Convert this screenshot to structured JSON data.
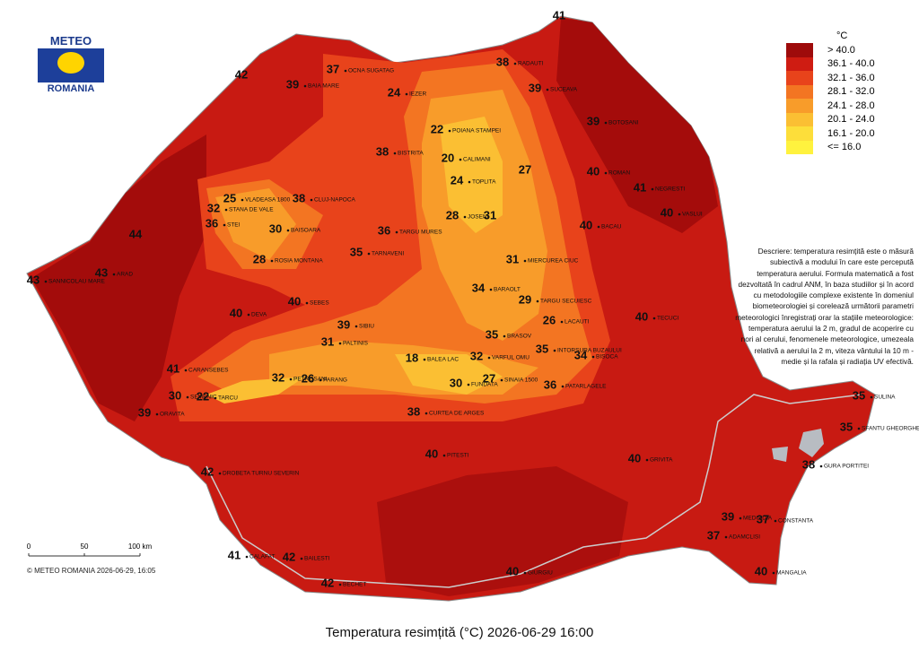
{
  "logo": {
    "line1": "METEO",
    "line2": "ROMANIA"
  },
  "legend": {
    "unit": "°C",
    "items": [
      {
        "label": "> 40.0",
        "color": "#9e0b0b"
      },
      {
        "label": "36.1 - 40.0",
        "color": "#cf1c12"
      },
      {
        "label": "32.1 - 36.0",
        "color": "#e8431b"
      },
      {
        "label": "28.1 - 32.0",
        "color": "#f37522"
      },
      {
        "label": "24.1 - 28.0",
        "color": "#f89c2a"
      },
      {
        "label": "20.1 - 24.0",
        "color": "#fbbf33"
      },
      {
        "label": "16.1 - 20.0",
        "color": "#fdde3a"
      },
      {
        "label": "<= 16.0",
        "color": "#fff23e"
      }
    ]
  },
  "description": "Descriere: temperatura resimțită este o măsură subiectivă a modului în care este percepută temperatura aerului. Formula matematică a fost dezvoltată în cadrul ANM, în baza studiilor și în acord cu metodologiile complexe existente în domeniul biometeorologiei și corelează următorii parametri meteorologici înregistrați orar la stațiile meteorologice: temperatura aerului la 2 m, gradul de acoperire cu nori al cerului, fenomenele meteorologice, umezeala relativă a aerului la 2 m, viteza vântului la 10 m - medie și la rafala și radiația UV efectivă.",
  "scale": {
    "ticks": [
      0,
      50,
      {
        "value": 100,
        "label": "100 km"
      }
    ]
  },
  "copyright": "© METEO ROMANIA 2026-06-29, 16:05",
  "title": "Temperatura resimțită (°C) 2026-06-29 16:00",
  "stations": [
    {
      "value": 41
    },
    {
      "value": 37,
      "name": "OCNA SUGATAG"
    },
    {
      "value": 39,
      "name": "BAIA MARE"
    },
    {
      "value": 42
    },
    {
      "value": 24,
      "name": "IEZER"
    },
    {
      "value": 38,
      "name": "RADAUTI"
    },
    {
      "value": 39,
      "name": "SUCEAVA"
    },
    {
      "value": 39,
      "name": "BOTOSANI"
    },
    {
      "value": 22,
      "name": "POIANA STAMPEI"
    },
    {
      "value": 38,
      "name": "BISTRITA"
    },
    {
      "value": 20,
      "name": "CALIMANI"
    },
    {
      "value": 27
    },
    {
      "value": 24,
      "name": "TOPLITA"
    },
    {
      "value": 40,
      "name": "ROMAN"
    },
    {
      "value": 41,
      "name": "NEGRESTI"
    },
    {
      "value": 40,
      "name": "VASLUI"
    },
    {
      "value": 25,
      "name": "VLADEASA 1800"
    },
    {
      "value": 38,
      "name": "CLUJ-NAPOCA"
    },
    {
      "value": 28,
      "name": "JOSENI"
    },
    {
      "value": 31
    },
    {
      "value": 32,
      "name": "STANA DE VALE"
    },
    {
      "value": 36,
      "name": "STEI"
    },
    {
      "value": 44
    },
    {
      "value": 30,
      "name": "BAISOARA"
    },
    {
      "value": 36,
      "name": "TARGU MURES"
    },
    {
      "value": 40,
      "name": "BACAU"
    },
    {
      "value": 28,
      "name": "ROSIA MONTANA"
    },
    {
      "value": 35,
      "name": "TARNAVENI"
    },
    {
      "value": 31,
      "name": "MIERCUREA CIUC"
    },
    {
      "value": 43,
      "name": "SANNICOLAU MARE"
    },
    {
      "value": 43,
      "name": "ARAD"
    },
    {
      "value": 40,
      "name": "SEBES"
    },
    {
      "value": 34,
      "name": "BARAOLT"
    },
    {
      "value": 29,
      "name": "TARGU SECUIESC"
    },
    {
      "value": 40,
      "name": "DEVA"
    },
    {
      "value": 39,
      "name": "SIBIU"
    },
    {
      "value": 26,
      "name": "LACAUTI"
    },
    {
      "value": 40,
      "name": "TECUCI"
    },
    {
      "value": 31,
      "name": "PALTINIS"
    },
    {
      "value": 18,
      "name": "BALEA LAC"
    },
    {
      "value": 35,
      "name": "BRASOV"
    },
    {
      "value": 35,
      "name": "INTORSURA BUZAULUI"
    },
    {
      "value": 34,
      "name": "BISOCA"
    },
    {
      "value": 41,
      "name": "CARANSEBES"
    },
    {
      "value": 32,
      "name": "PETROSANI"
    },
    {
      "value": 26,
      "name": "PARANG"
    },
    {
      "value": 32,
      "name": "VARFUL OMU"
    },
    {
      "value": 30,
      "name": "FUNDATA"
    },
    {
      "value": 27,
      "name": "SINAIA 1500"
    },
    {
      "value": 36,
      "name": "PATARLAGELE"
    },
    {
      "value": 30,
      "name": "SEMENIC"
    },
    {
      "value": 22,
      "name": "TARCU"
    },
    {
      "value": 39,
      "name": "ORAVITA"
    },
    {
      "value": 38,
      "name": "CURTEA DE ARGES"
    },
    {
      "value": 35,
      "name": "SULINA"
    },
    {
      "value": 35,
      "name": "SFANTU GHEORGHE"
    },
    {
      "value": 40,
      "name": "GRIVITA"
    },
    {
      "value": 38,
      "name": "GURA PORTITEI"
    },
    {
      "value": 42,
      "name": "DROBETA TURNU SEVERIN"
    },
    {
      "value": 40,
      "name": "PITESTI"
    },
    {
      "value": 39,
      "name": "MEDGIDIA"
    },
    {
      "value": 37,
      "name": "CONSTANTA"
    },
    {
      "value": 37,
      "name": "ADAMCLISI"
    },
    {
      "value": 41,
      "name": "CALAFAT"
    },
    {
      "value": 42,
      "name": "BAILESTI"
    },
    {
      "value": 40,
      "name": "MANGALIA"
    },
    {
      "value": 42,
      "name": "BECHET"
    },
    {
      "value": 40,
      "name": "GIURGIU"
    }
  ]
}
